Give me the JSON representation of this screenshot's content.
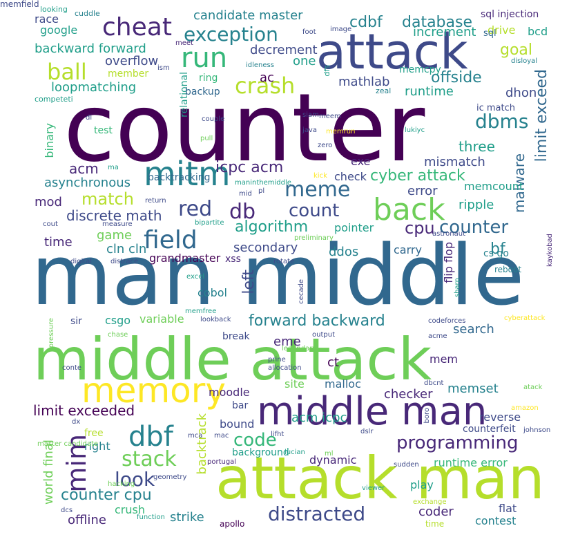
{
  "colors": {
    "dark_purple": "#440154",
    "indigo": "#482878",
    "slate_blue": "#3e4a89",
    "steel_blue": "#31688e",
    "teal_blue": "#26828e",
    "teal": "#1f9e89",
    "green_teal": "#35b779",
    "green": "#6ece58",
    "lime": "#b5de2b",
    "yellow": "#fde725"
  },
  "words": [
    {
      "text": "counter",
      "color": "#440154"
    },
    {
      "text": "man middle",
      "color": "#31688e"
    },
    {
      "text": "middle attack",
      "color": "#6ece58"
    },
    {
      "text": "attack man",
      "color": "#b5de2b"
    },
    {
      "text": "attack",
      "color": "#3e4a89"
    },
    {
      "text": "middle man",
      "color": "#482878"
    },
    {
      "text": "memory",
      "color": "#fde725"
    },
    {
      "text": "mitm",
      "color": "#26828e"
    },
    {
      "text": "back",
      "color": "#6ece58"
    },
    {
      "text": "run",
      "color": "#35b779"
    },
    {
      "text": "cheat",
      "color": "#482878"
    },
    {
      "text": "ball",
      "color": "#b5de2b"
    },
    {
      "text": "crash",
      "color": "#b5de2b"
    },
    {
      "text": "exception",
      "color": "#26828e"
    },
    {
      "text": "field",
      "color": "#31688e"
    },
    {
      "text": "meme",
      "color": "#31688e"
    },
    {
      "text": "red",
      "color": "#3e4a89"
    },
    {
      "text": "db",
      "color": "#482878"
    },
    {
      "text": "count",
      "color": "#3e4a89"
    },
    {
      "text": "dbms",
      "color": "#26828e"
    },
    {
      "text": "dbf",
      "color": "#26828e"
    },
    {
      "text": "mim",
      "color": "#482878"
    },
    {
      "text": "stack",
      "color": "#6ece58"
    },
    {
      "text": "look",
      "color": "#3e4a89"
    },
    {
      "text": "code",
      "color": "#35b779"
    },
    {
      "text": "programming",
      "color": "#482878"
    },
    {
      "text": "distracted",
      "color": "#3e4a89"
    },
    {
      "text": "counter cpu",
      "color": "#26828e"
    },
    {
      "text": "forward backward",
      "color": "#26828e"
    },
    {
      "text": "counter",
      "color": "#31688e"
    },
    {
      "text": "cpu",
      "color": "#482878"
    },
    {
      "text": "algorithm",
      "color": "#1f9e89"
    },
    {
      "text": "match",
      "color": "#b5de2b"
    },
    {
      "text": "cyber attack",
      "color": "#35b779"
    },
    {
      "text": "icpc acm",
      "color": "#482878"
    },
    {
      "text": "discrete math",
      "color": "#3e4a89"
    },
    {
      "text": "limit exceed",
      "color": "#31688e"
    },
    {
      "text": "malware",
      "color": "#31688e"
    },
    {
      "text": "offside",
      "color": "#26828e"
    },
    {
      "text": "goal",
      "color": "#b5de2b"
    },
    {
      "text": "three",
      "color": "#1f9e89"
    },
    {
      "text": "database",
      "color": "#26828e"
    },
    {
      "text": "cdbf",
      "color": "#26828e"
    },
    {
      "text": "backward forward",
      "color": "#1f9e89"
    },
    {
      "text": "candidate master",
      "color": "#26828e"
    },
    {
      "text": "loopmatching",
      "color": "#1f9e89"
    },
    {
      "text": "overflow",
      "color": "#3e4a89"
    },
    {
      "text": "acm",
      "color": "#482878"
    },
    {
      "text": "asynchronous",
      "color": "#26828e"
    },
    {
      "text": "mod",
      "color": "#482878"
    },
    {
      "text": "game",
      "color": "#6ece58"
    },
    {
      "text": "cln cln",
      "color": "#26828e"
    },
    {
      "text": "time",
      "color": "#482878"
    },
    {
      "text": "grandmaster",
      "color": "#440154"
    },
    {
      "text": "secondary",
      "color": "#3e4a89"
    },
    {
      "text": "ddos",
      "color": "#26828e"
    },
    {
      "text": "left",
      "color": "#3e4a89"
    },
    {
      "text": "bf",
      "color": "#26828e"
    },
    {
      "text": "ripple",
      "color": "#1f9e89"
    },
    {
      "text": "error",
      "color": "#3e4a89"
    },
    {
      "text": "mismatch",
      "color": "#3e4a89"
    },
    {
      "text": "exe",
      "color": "#482878"
    },
    {
      "text": "check",
      "color": "#3e4a89"
    },
    {
      "text": "memcount",
      "color": "#1f9e89"
    },
    {
      "text": "mathlab",
      "color": "#3e4a89"
    },
    {
      "text": "runtime",
      "color": "#1f9e89"
    },
    {
      "text": "dhon",
      "color": "#3e4a89"
    },
    {
      "text": "ac",
      "color": "#440154"
    },
    {
      "text": "one",
      "color": "#1f9e89"
    },
    {
      "text": "decrement",
      "color": "#3e4a89"
    },
    {
      "text": "increment",
      "color": "#1f9e89"
    },
    {
      "text": "drive",
      "color": "#b5de2b"
    },
    {
      "text": "bcd",
      "color": "#1f9e89"
    },
    {
      "text": "google",
      "color": "#1f9e89"
    },
    {
      "text": "race",
      "color": "#3e4a89"
    },
    {
      "text": "cuddle",
      "color": "#26828e"
    },
    {
      "text": "sql injection",
      "color": "#482878"
    },
    {
      "text": "sql",
      "color": "#31688e"
    },
    {
      "text": "memcpy",
      "color": "#1f9e89"
    },
    {
      "text": "ic match",
      "color": "#3e4a89"
    },
    {
      "text": "binary",
      "color": "#35b779"
    },
    {
      "text": "relational",
      "color": "#1f9e89"
    },
    {
      "text": "backup",
      "color": "#31688e"
    },
    {
      "text": "ring",
      "color": "#35b779"
    },
    {
      "text": "member",
      "color": "#b5de2b"
    },
    {
      "text": "test",
      "color": "#35b779"
    },
    {
      "text": "backtracking",
      "color": "#31688e"
    },
    {
      "text": "pointer",
      "color": "#1f9e89"
    },
    {
      "text": "carry",
      "color": "#31688e"
    },
    {
      "text": "flip flop",
      "color": "#482878"
    },
    {
      "text": "cs go",
      "color": "#26828e"
    },
    {
      "text": "reboot",
      "color": "#26828e"
    },
    {
      "text": "xss",
      "color": "#482878"
    },
    {
      "text": "cobol",
      "color": "#26828e"
    },
    {
      "text": "variable",
      "color": "#6ece58"
    },
    {
      "text": "csgo",
      "color": "#1f9e89"
    },
    {
      "text": "sir",
      "color": "#3e4a89"
    },
    {
      "text": "break",
      "color": "#3e4a89"
    },
    {
      "text": "eme",
      "color": "#482878"
    },
    {
      "text": "search",
      "color": "#31688e"
    },
    {
      "text": "ct",
      "color": "#440154"
    },
    {
      "text": "mem",
      "color": "#482878"
    },
    {
      "text": "site",
      "color": "#6ece58"
    },
    {
      "text": "malloc",
      "color": "#31688e"
    },
    {
      "text": "checker",
      "color": "#482878"
    },
    {
      "text": "memset",
      "color": "#26828e"
    },
    {
      "text": "moodle",
      "color": "#482878"
    },
    {
      "text": "limit exceeded",
      "color": "#440154"
    },
    {
      "text": "bar",
      "color": "#3e4a89"
    },
    {
      "text": "bound",
      "color": "#3e4a89"
    },
    {
      "text": "background",
      "color": "#1f9e89"
    },
    {
      "text": "acm icpc",
      "color": "#1f9e89"
    },
    {
      "text": "dynamic",
      "color": "#482878"
    },
    {
      "text": "reverse",
      "color": "#3e4a89"
    },
    {
      "text": "counterfeit",
      "color": "#3e4a89"
    },
    {
      "text": "runtime error",
      "color": "#35b779"
    },
    {
      "text": "backtrack",
      "color": "#b5de2b"
    },
    {
      "text": "world final",
      "color": "#6ece58"
    },
    {
      "text": "free",
      "color": "#b5de2b"
    },
    {
      "text": "right",
      "color": "#26828e"
    },
    {
      "text": "offline",
      "color": "#482878"
    },
    {
      "text": "crush",
      "color": "#35b779"
    },
    {
      "text": "strike",
      "color": "#26828e"
    },
    {
      "text": "coder",
      "color": "#482878"
    },
    {
      "text": "contest",
      "color": "#26828e"
    },
    {
      "text": "flat",
      "color": "#3e4a89"
    },
    {
      "text": "play",
      "color": "#1f9e89"
    },
    {
      "text": "apollo",
      "color": "#440154"
    },
    {
      "text": "time",
      "color": "#b5de2b"
    },
    {
      "text": "exchange",
      "color": "#b5de2b"
    },
    {
      "text": "viewer",
      "color": "#1f9e89"
    },
    {
      "text": "meet",
      "color": "#482878"
    },
    {
      "text": "idleness",
      "color": "#26828e"
    },
    {
      "text": "disloyal",
      "color": "#26828e"
    },
    {
      "text": "competeti",
      "color": "#1f9e89"
    },
    {
      "text": "looking",
      "color": "#1f9e89"
    },
    {
      "text": "foot",
      "color": "#3e4a89"
    },
    {
      "text": "image",
      "color": "#3e4a89"
    },
    {
      "text": "zeal",
      "color": "#26828e"
    },
    {
      "text": "dfs",
      "color": "#1f9e89"
    },
    {
      "text": "ism",
      "color": "#3e4a89"
    },
    {
      "text": "dl",
      "color": "#3e4a89"
    },
    {
      "text": "couple",
      "color": "#3e4a89"
    },
    {
      "text": "pull",
      "color": "#6ece58"
    },
    {
      "text": "siam",
      "color": "#3e4a89"
    },
    {
      "text": "java",
      "color": "#3e4a89"
    },
    {
      "text": "meem",
      "color": "#3e4a89"
    },
    {
      "text": "memrun",
      "color": "#fde725"
    },
    {
      "text": "lukiyc",
      "color": "#1f9e89"
    },
    {
      "text": "zero",
      "color": "#3e4a89"
    },
    {
      "text": "ma",
      "color": "#1f9e89"
    },
    {
      "text": "kick",
      "color": "#fde725"
    },
    {
      "text": "maninthemiddle",
      "color": "#1f9e89"
    },
    {
      "text": "pl",
      "color": "#3e4a89"
    },
    {
      "text": "mid",
      "color": "#3e4a89"
    },
    {
      "text": "return",
      "color": "#3e4a89"
    },
    {
      "text": "cout",
      "color": "#3e4a89"
    },
    {
      "text": "measure",
      "color": "#3e4a89"
    },
    {
      "text": "bipartite",
      "color": "#1f9e89"
    },
    {
      "text": "preliminary",
      "color": "#6ece58"
    },
    {
      "text": "astronaut",
      "color": "#3e4a89"
    },
    {
      "text": "kaykobad",
      "color": "#482878"
    },
    {
      "text": "digital",
      "color": "#3e4a89"
    },
    {
      "text": "distrace",
      "color": "#3e4a89"
    },
    {
      "text": "rotate",
      "color": "#3e4a89"
    },
    {
      "text": "excel",
      "color": "#1f9e89"
    },
    {
      "text": "cecade",
      "color": "#3e4a89"
    },
    {
      "text": "sharp",
      "color": "#1f9e89"
    },
    {
      "text": "memfree",
      "color": "#1f9e89"
    },
    {
      "text": "lookback",
      "color": "#3e4a89"
    },
    {
      "text": "codeforces",
      "color": "#3e4a89"
    },
    {
      "text": "cyberattack",
      "color": "#fde725"
    },
    {
      "text": "pressure",
      "color": "#6ece58"
    },
    {
      "text": "chase",
      "color": "#6ece58"
    },
    {
      "text": "output",
      "color": "#3e4a89"
    },
    {
      "text": "legendary",
      "color": "#6ece58"
    },
    {
      "text": "acme",
      "color": "#3e4a89"
    },
    {
      "text": "prine",
      "color": "#3e4a89"
    },
    {
      "text": "allocation",
      "color": "#3e4a89"
    },
    {
      "text": "conte",
      "color": "#3e4a89"
    },
    {
      "text": "dbcnt",
      "color": "#3e4a89"
    },
    {
      "text": "atack",
      "color": "#6ece58"
    },
    {
      "text": "amazon",
      "color": "#fde725"
    },
    {
      "text": "johnson",
      "color": "#3e4a89"
    },
    {
      "text": "boro",
      "color": "#3e4a89"
    },
    {
      "text": "dx",
      "color": "#3e4a89"
    },
    {
      "text": "master candidate",
      "color": "#6ece58"
    },
    {
      "text": "mca",
      "color": "#3e4a89"
    },
    {
      "text": "mac",
      "color": "#3e4a89"
    },
    {
      "text": "lifht",
      "color": "#3e4a89"
    },
    {
      "text": "dslr",
      "color": "#3e4a89"
    },
    {
      "text": "lucian",
      "color": "#1f9e89"
    },
    {
      "text": "ml",
      "color": "#6ece58"
    },
    {
      "text": "sudden",
      "color": "#3e4a89"
    },
    {
      "text": "portugal",
      "color": "#482878"
    },
    {
      "text": "hacking",
      "color": "#6ece58"
    },
    {
      "text": "geometry",
      "color": "#3e4a89"
    },
    {
      "text": "dcs",
      "color": "#3e4a89"
    },
    {
      "text": "function",
      "color": "#1f9e89"
    },
    {
      "text": "memfield",
      "color": "#3e4a89"
    }
  ]
}
